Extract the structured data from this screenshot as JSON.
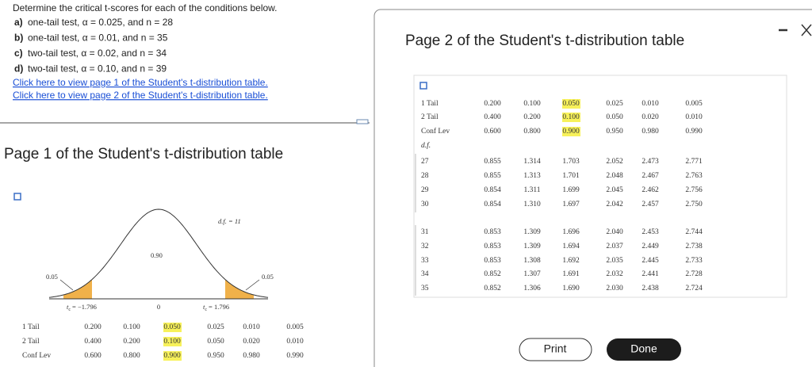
{
  "question": {
    "intro": "Determine the critical t-scores for each of the conditions below.",
    "items": [
      {
        "label": "a)",
        "text": "one-tail test, α = 0.025, and n = 28"
      },
      {
        "label": "b)",
        "text": "one-tail test, α = 0.01, and n = 35"
      },
      {
        "label": "c)",
        "text": "two-tail test, α = 0.02, and n = 34"
      },
      {
        "label": "d)",
        "text": "two-tail test, α = 0.10, and n = 39"
      }
    ],
    "links": [
      "Click here to view page 1 of the Student's t-distribution table.",
      "Click here to view page 2 of the Student's t-distribution table."
    ]
  },
  "page1": {
    "title": "Page 1 of the Student's t-distribution table",
    "figure": {
      "df": "d.f. = 11",
      "center": "0.90",
      "left_area": "0.05",
      "right_area": "0.05",
      "t_symbol": "t",
      "t_subscript": "c",
      "left_tc": "= −1.796",
      "zero": "0",
      "right_tc": "= 1.796"
    },
    "table": {
      "rows": [
        [
          "1 Tail",
          "0.200",
          "0.100",
          "0.050",
          "0.025",
          "0.010",
          "0.005"
        ],
        [
          "2 Tail",
          "0.400",
          "0.200",
          "0.100",
          "0.050",
          "0.020",
          "0.010"
        ],
        [
          "Conf Lev",
          "0.600",
          "0.800",
          "0.900",
          "0.950",
          "0.980",
          "0.990"
        ]
      ]
    }
  },
  "page2": {
    "title": "Page 2 of the Student's t-distribution table",
    "table": {
      "header": [
        [
          "1 Tail",
          "0.200",
          "0.100",
          "0.050",
          "0.025",
          "0.010",
          "0.005"
        ],
        [
          "2 Tail",
          "0.400",
          "0.200",
          "0.100",
          "0.050",
          "0.020",
          "0.010"
        ],
        [
          "Conf Lev",
          "0.600",
          "0.800",
          "0.900",
          "0.950",
          "0.980",
          "0.990"
        ]
      ],
      "df_label": "d.f.",
      "rows": [
        [
          "27",
          "0.855",
          "1.314",
          "1.703",
          "2.052",
          "2.473",
          "2.771"
        ],
        [
          "28",
          "0.855",
          "1.313",
          "1.701",
          "2.048",
          "2.467",
          "2.763"
        ],
        [
          "29",
          "0.854",
          "1.311",
          "1.699",
          "2.045",
          "2.462",
          "2.756"
        ],
        [
          "30",
          "0.854",
          "1.310",
          "1.697",
          "2.042",
          "2.457",
          "2.750"
        ],
        [
          "31",
          "0.853",
          "1.309",
          "1.696",
          "2.040",
          "2.453",
          "2.744"
        ],
        [
          "32",
          "0.853",
          "1.309",
          "1.694",
          "2.037",
          "2.449",
          "2.738"
        ],
        [
          "33",
          "0.853",
          "1.308",
          "1.692",
          "2.035",
          "2.445",
          "2.733"
        ],
        [
          "34",
          "0.852",
          "1.307",
          "1.691",
          "2.032",
          "2.441",
          "2.728"
        ],
        [
          "35",
          "0.852",
          "1.306",
          "1.690",
          "2.030",
          "2.438",
          "2.724"
        ]
      ]
    }
  },
  "buttons": {
    "print": "Print",
    "done": "Done"
  }
}
